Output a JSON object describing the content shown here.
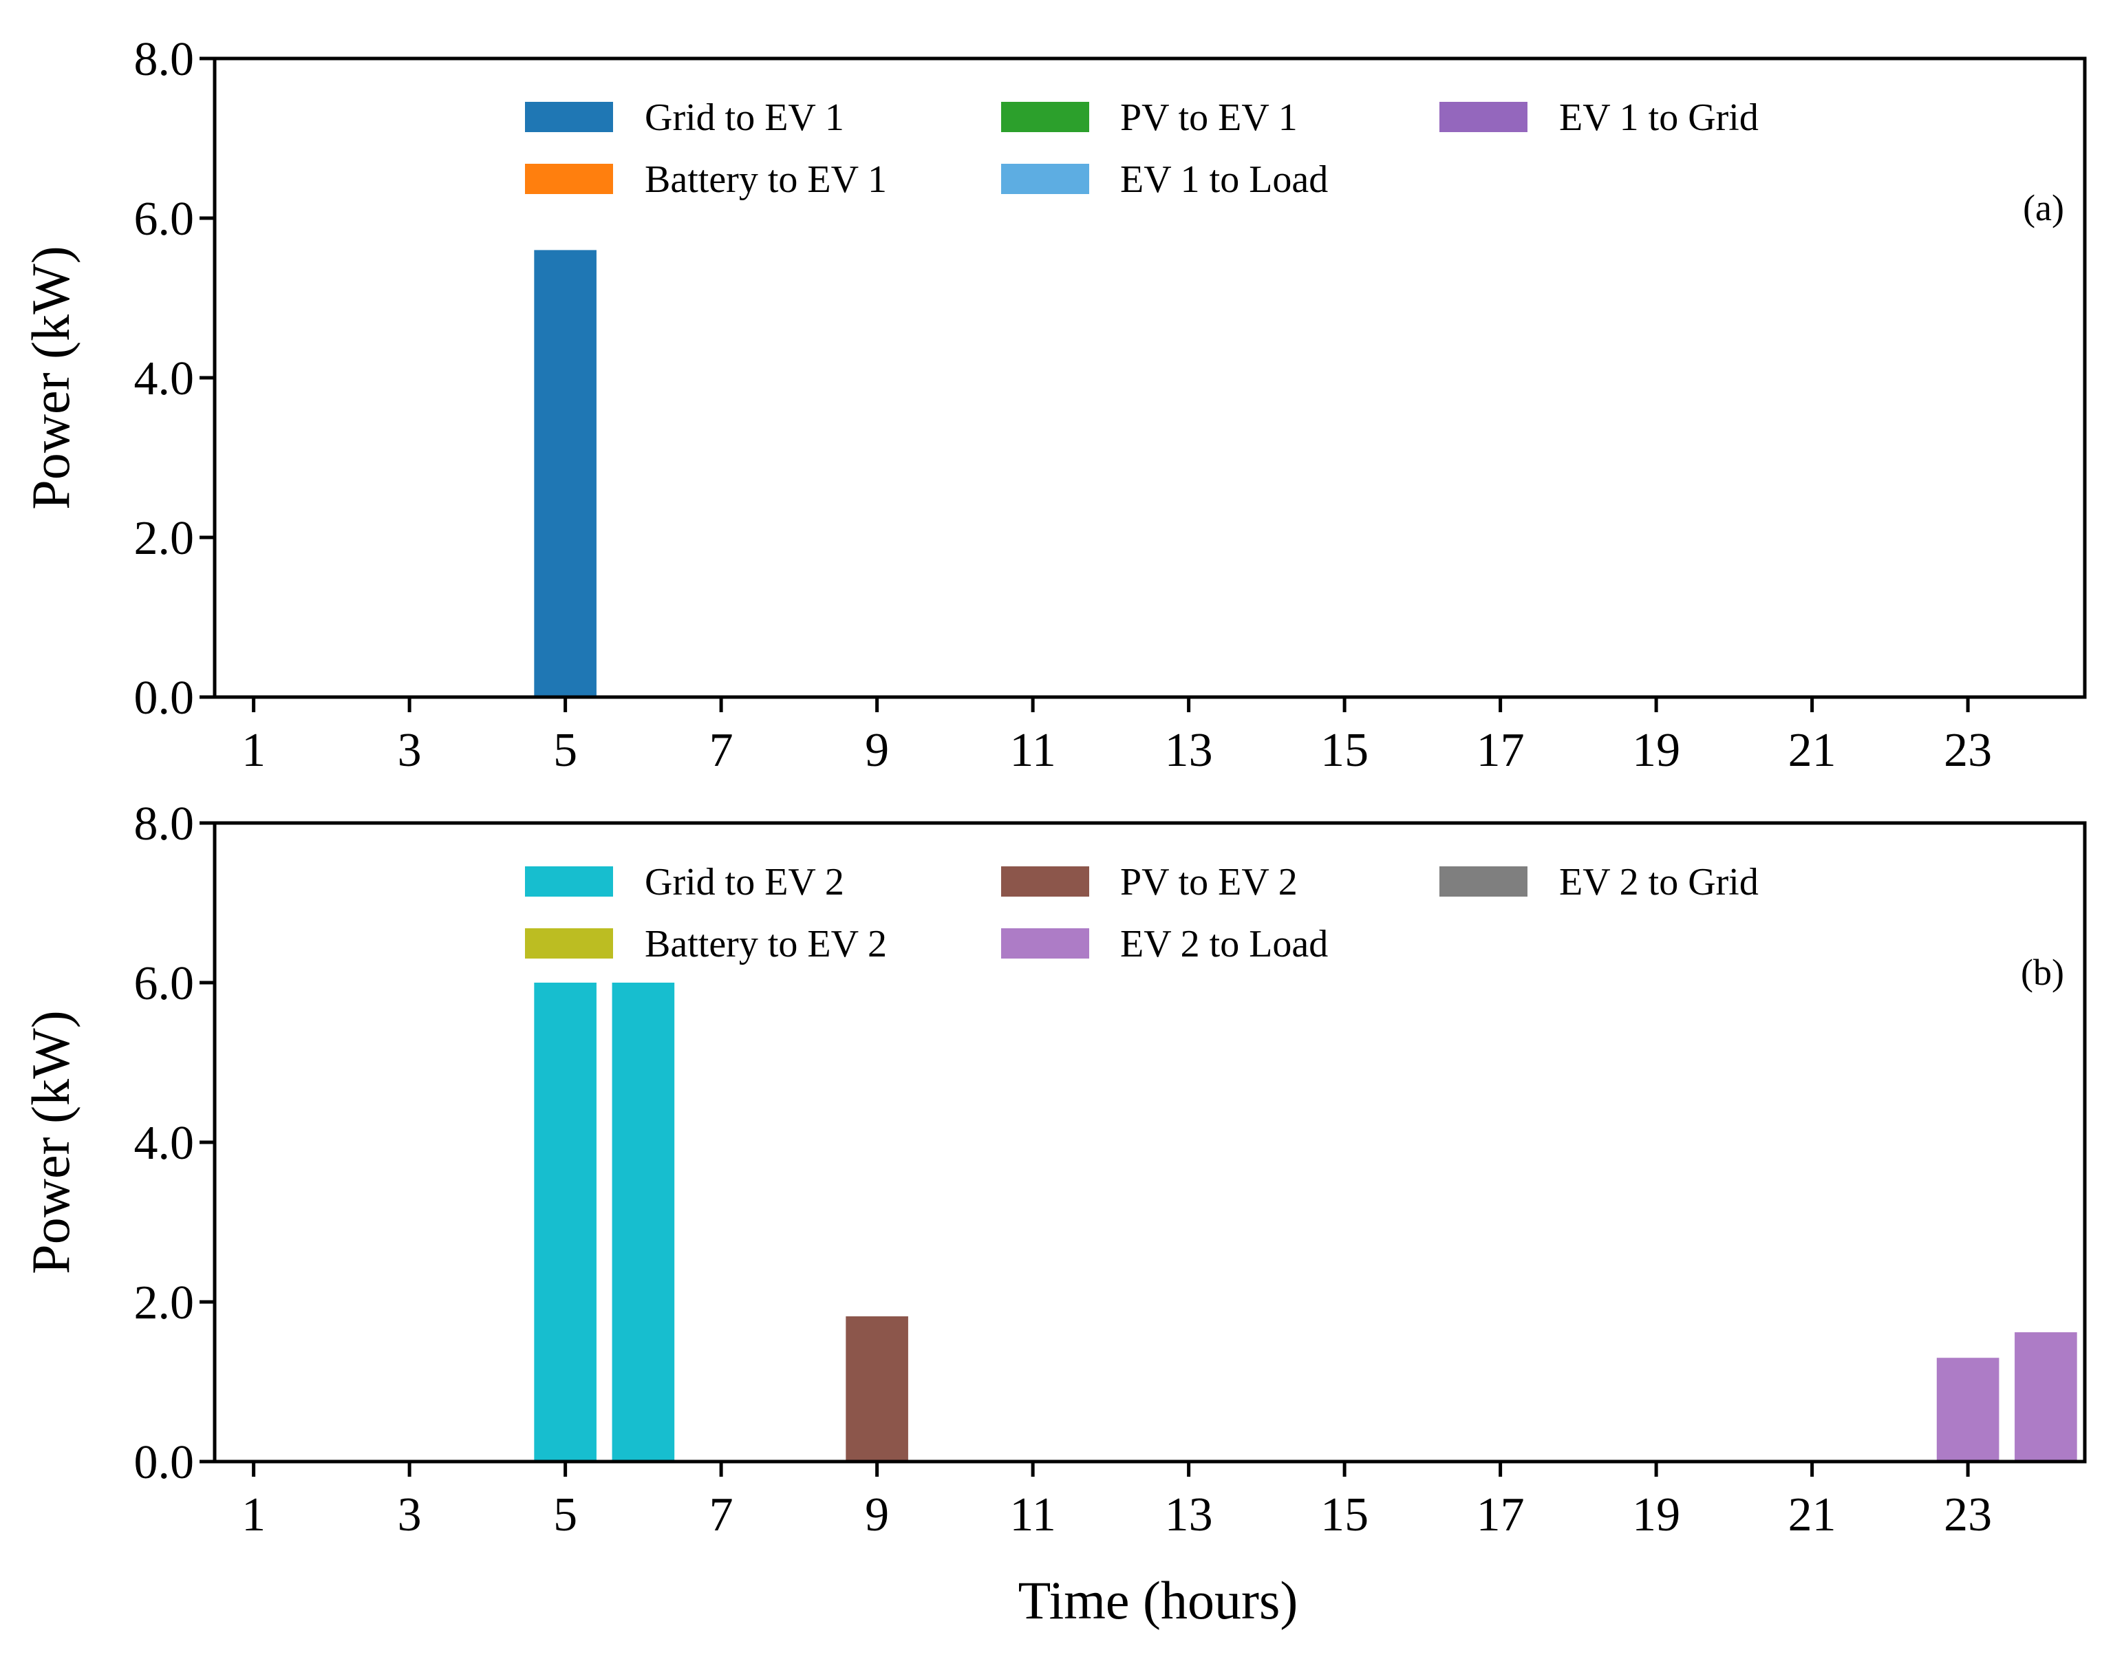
{
  "xlabel": "Time (hours)",
  "chart_data": [
    {
      "type": "bar",
      "panel_label": "(a)",
      "title": "",
      "xlabel": "",
      "ylabel": "Power (kW)",
      "xlim": [
        0.5,
        24.5
      ],
      "ylim": [
        0,
        8
      ],
      "xticks": [
        1,
        3,
        5,
        7,
        9,
        11,
        13,
        15,
        17,
        19,
        21,
        23
      ],
      "xtick_labels": [
        "1",
        "3",
        "5",
        "7",
        "9",
        "11",
        "13",
        "15",
        "17",
        "19",
        "21",
        "23"
      ],
      "yticks": [
        0,
        2,
        4,
        6,
        8
      ],
      "ytick_labels": [
        "0.0",
        "2.0",
        "4.0",
        "6.0",
        "8.0"
      ],
      "legend_location": "top-center",
      "series": [
        {
          "name": "Grid to EV 1",
          "color": "#1f77b4",
          "points": [
            {
              "x": 5,
              "y": 5.6
            }
          ]
        },
        {
          "name": "Battery to EV 1",
          "color": "#ff7f0e",
          "points": []
        },
        {
          "name": "PV to EV 1",
          "color": "#2ca02c",
          "points": []
        },
        {
          "name": "EV 1 to Load",
          "color": "#5dade2",
          "points": []
        },
        {
          "name": "EV 1 to Grid",
          "color": "#9467bd",
          "points": []
        }
      ]
    },
    {
      "type": "bar",
      "panel_label": "(b)",
      "title": "",
      "xlabel": "Time (hours)",
      "ylabel": "Power (kW)",
      "xlim": [
        0.5,
        24.5
      ],
      "ylim": [
        0,
        8
      ],
      "xticks": [
        1,
        3,
        5,
        7,
        9,
        11,
        13,
        15,
        17,
        19,
        21,
        23
      ],
      "xtick_labels": [
        "1",
        "3",
        "5",
        "7",
        "9",
        "11",
        "13",
        "15",
        "17",
        "19",
        "21",
        "23"
      ],
      "yticks": [
        0,
        2,
        4,
        6,
        8
      ],
      "ytick_labels": [
        "0.0",
        "2.0",
        "4.0",
        "6.0",
        "8.0"
      ],
      "legend_location": "top-center",
      "series": [
        {
          "name": "Grid to EV 2",
          "color": "#17becf",
          "points": [
            {
              "x": 5,
              "y": 6.0
            },
            {
              "x": 6,
              "y": 6.0
            }
          ]
        },
        {
          "name": "Battery to EV 2",
          "color": "#bcbd22",
          "points": []
        },
        {
          "name": "PV to EV 2",
          "color": "#8c564b",
          "points": [
            {
              "x": 9,
              "y": 1.82
            }
          ]
        },
        {
          "name": "EV 2 to Load",
          "color": "#ad7cc6",
          "points": [
            {
              "x": 23,
              "y": 1.3
            },
            {
              "x": 24,
              "y": 1.62
            }
          ]
        },
        {
          "name": "EV 2 to Grid",
          "color": "#7f7f7f",
          "points": []
        }
      ]
    }
  ]
}
